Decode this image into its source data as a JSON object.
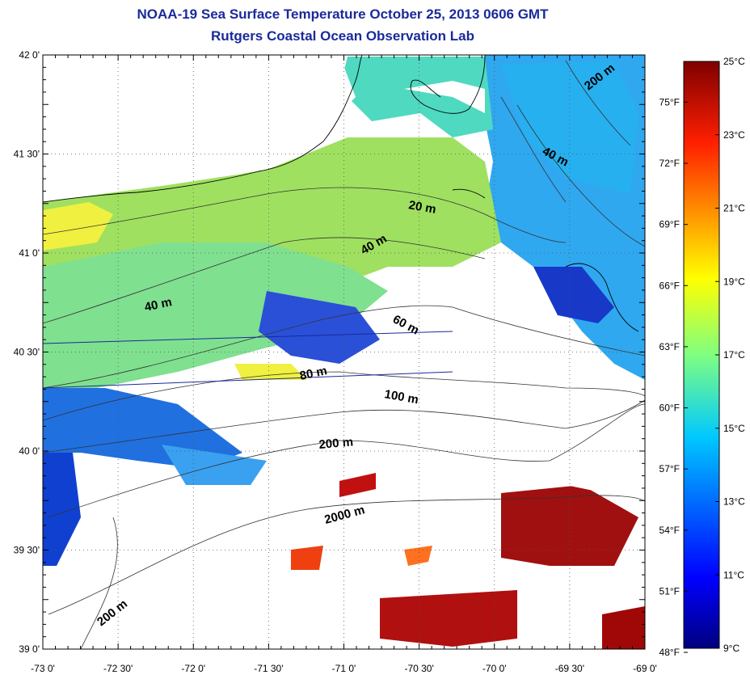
{
  "title": "NOAA-19 Sea Surface Temperature October 25, 2013 0606 GMT",
  "subtitle": "Rutgers Coastal Ocean Observation Lab",
  "map": {
    "lat_labels": [
      "42 0'",
      "41 30'",
      "41 0'",
      "40 30'",
      "40 0'",
      "39 30'",
      "39 0'"
    ],
    "lon_labels": [
      "-73 0'",
      "-72 30'",
      "-72 0'",
      "-71 30'",
      "-71 0'",
      "-70 30'",
      "-70 0'",
      "-69 30'",
      "-69 0'"
    ],
    "contour_labels": [
      "200 m",
      "40 m",
      "20 m",
      "40 m",
      "40 m",
      "60 m",
      "80 m",
      "100 m",
      "200 m",
      "2000 m",
      "200 m"
    ]
  },
  "colorbar": {
    "celsius_labels": [
      "25°C",
      "23°C",
      "21°C",
      "19°C",
      "17°C",
      "15°C",
      "13°C",
      "11°C",
      "9°C"
    ],
    "fahrenheit_labels": [
      "75°F",
      "72°F",
      "69°F",
      "66°F",
      "63°F",
      "60°F",
      "57°F",
      "54°F",
      "51°F",
      "48°F"
    ],
    "colors": [
      "#000080",
      "#0000ff",
      "#0080ff",
      "#00ffff",
      "#80ff80",
      "#ffff00",
      "#ff8000",
      "#ff0000",
      "#800000"
    ]
  }
}
